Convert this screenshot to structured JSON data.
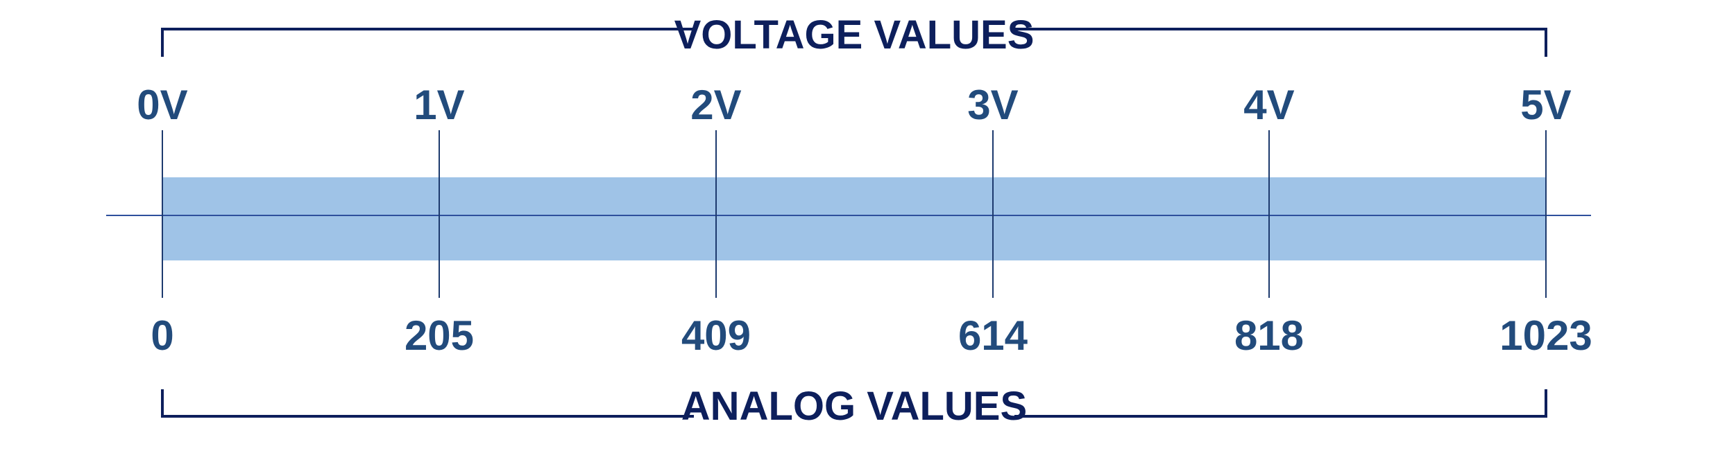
{
  "diagram": {
    "top_heading": "VOLTAGE VALUES",
    "bottom_heading": "ANALOG VALUES",
    "voltage_labels": [
      "0V",
      "1V",
      "2V",
      "3V",
      "4V",
      "5V"
    ],
    "analog_labels": [
      "0",
      "205",
      "409",
      "614",
      "818",
      "1023"
    ]
  },
  "colors": {
    "band": "#9fc3e7",
    "axis_line": "#2e4f9c",
    "tick_line": "#1d3a6e",
    "bracket": "#0d1f5c",
    "heading": "#0d1f5c",
    "label": "#224b7c"
  }
}
